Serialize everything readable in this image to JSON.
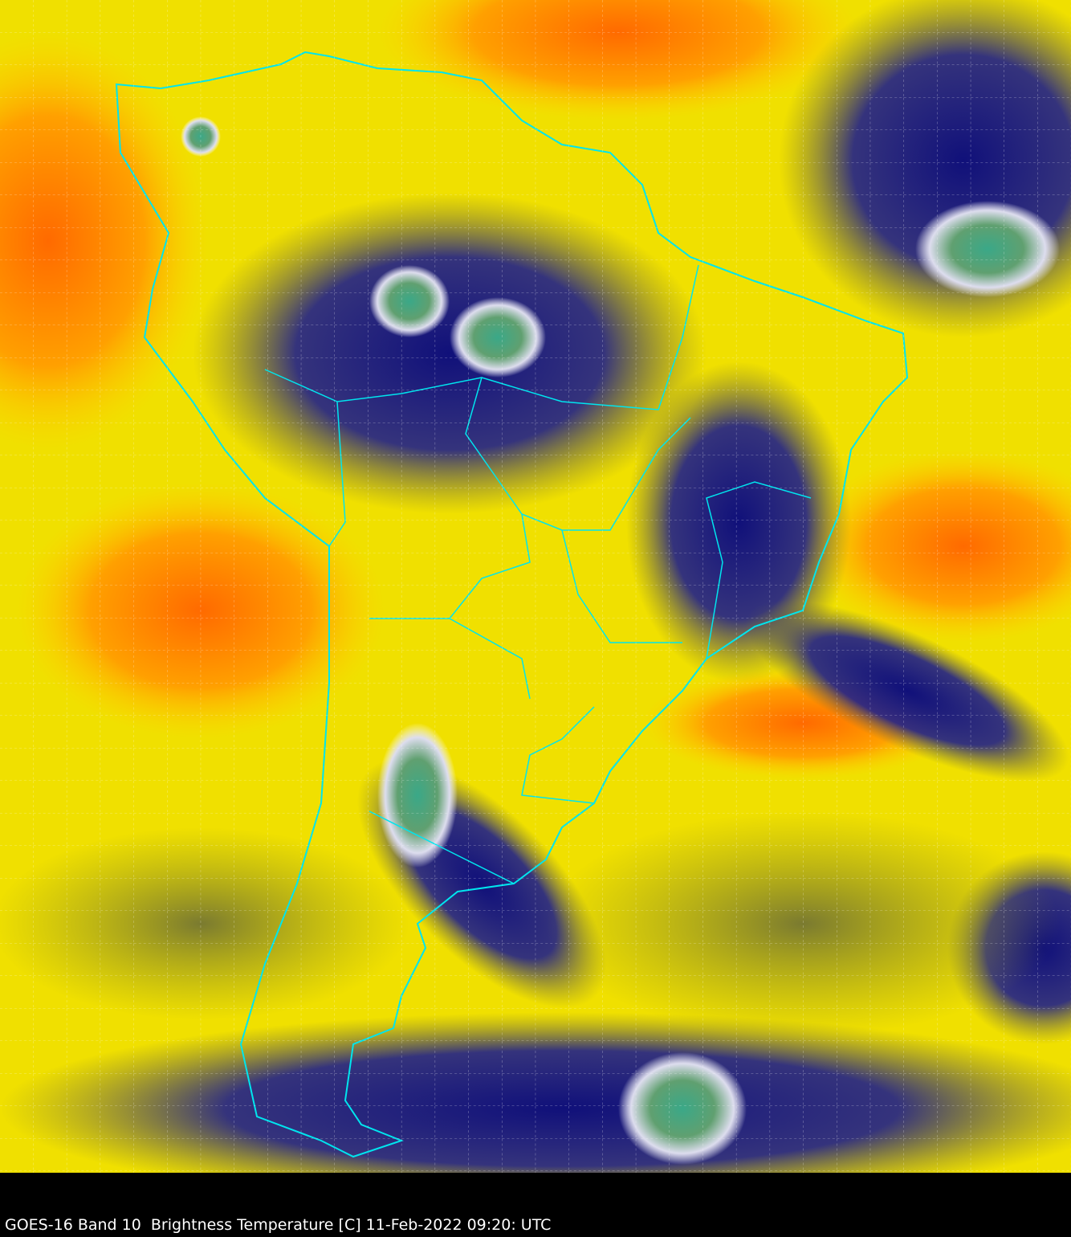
{
  "caption": "GOES-16 Band 10  Brightness Temperature [C] 11-Feb-2022 09:20: UTC",
  "image": {
    "type": "satellite-infrared-map",
    "region": "South America",
    "palette": {
      "warm": "#ff7a00",
      "mid": "#ffff00",
      "olive": "#8a8a30",
      "cold": "#0a0a80",
      "coldest": "#ffffff",
      "very_cold": "#3aa08a"
    },
    "border_color": "#00e5ee",
    "grid": "dashed white lat/lon"
  }
}
